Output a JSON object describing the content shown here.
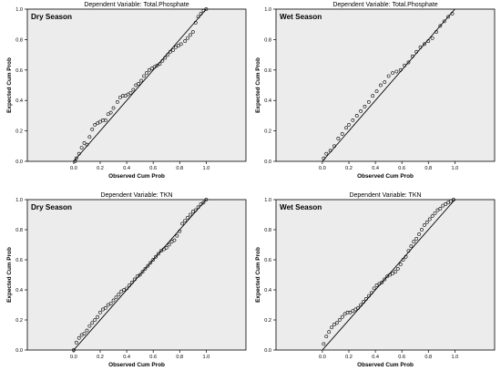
{
  "chart_data": [
    {
      "type": "scatter",
      "title": "Dependent Variable: Total.Phosphate",
      "annotation": "Dry Season",
      "xlabel": "Observed Cum Prob",
      "ylabel": "Expected Cum Prob",
      "xlim": [
        -0.35,
        1.3
      ],
      "ylim": [
        0,
        1.0
      ],
      "xticks": [
        "0.0",
        "0.2",
        "0.4",
        "0.6",
        "0.8",
        "1.0"
      ],
      "yticks": [
        "0.0",
        "0.2",
        "0.4",
        "0.6",
        "0.8",
        "1.0"
      ],
      "colors": {
        "plot_bg": "#ececec",
        "line": "#000000",
        "points": "#000000"
      },
      "reference_line": {
        "x": [
          0,
          1
        ],
        "y": [
          0,
          1
        ]
      },
      "points": [
        [
          0.01,
          0.0
        ],
        [
          0.02,
          0.02
        ],
        [
          0.04,
          0.05
        ],
        [
          0.06,
          0.09
        ],
        [
          0.08,
          0.12
        ],
        [
          0.1,
          0.11
        ],
        [
          0.12,
          0.16
        ],
        [
          0.14,
          0.21
        ],
        [
          0.16,
          0.24
        ],
        [
          0.18,
          0.25
        ],
        [
          0.2,
          0.26
        ],
        [
          0.22,
          0.27
        ],
        [
          0.24,
          0.27
        ],
        [
          0.26,
          0.31
        ],
        [
          0.28,
          0.32
        ],
        [
          0.3,
          0.35
        ],
        [
          0.33,
          0.39
        ],
        [
          0.35,
          0.42
        ],
        [
          0.37,
          0.43
        ],
        [
          0.39,
          0.43
        ],
        [
          0.41,
          0.44
        ],
        [
          0.43,
          0.45
        ],
        [
          0.45,
          0.47
        ],
        [
          0.47,
          0.5
        ],
        [
          0.49,
          0.51
        ],
        [
          0.51,
          0.53
        ],
        [
          0.53,
          0.56
        ],
        [
          0.55,
          0.58
        ],
        [
          0.57,
          0.6
        ],
        [
          0.59,
          0.61
        ],
        [
          0.61,
          0.62
        ],
        [
          0.63,
          0.63
        ],
        [
          0.65,
          0.64
        ],
        [
          0.67,
          0.66
        ],
        [
          0.69,
          0.68
        ],
        [
          0.71,
          0.7
        ],
        [
          0.73,
          0.72
        ],
        [
          0.75,
          0.73
        ],
        [
          0.77,
          0.75
        ],
        [
          0.79,
          0.76
        ],
        [
          0.81,
          0.77
        ],
        [
          0.84,
          0.79
        ],
        [
          0.86,
          0.81
        ],
        [
          0.88,
          0.83
        ],
        [
          0.9,
          0.85
        ],
        [
          0.92,
          0.91
        ],
        [
          0.94,
          0.95
        ],
        [
          0.96,
          0.97
        ],
        [
          0.98,
          0.99
        ],
        [
          1.0,
          1.0
        ]
      ]
    },
    {
      "type": "scatter",
      "title": "Dependent Variable: Total.Phosphate",
      "annotation": "Wet Season",
      "xlabel": "Observed Cum Prob",
      "ylabel": "Expected Cum Prob",
      "xlim": [
        -0.35,
        1.3
      ],
      "ylim": [
        0,
        1.0
      ],
      "xticks": [
        "0.0",
        "0.2",
        "0.4",
        "0.6",
        "0.8",
        "1.0"
      ],
      "yticks": [
        "0.0",
        "0.2",
        "0.4",
        "0.6",
        "0.8",
        "1.0"
      ],
      "colors": {
        "plot_bg": "#ececec",
        "line": "#000000",
        "points": "#000000"
      },
      "reference_line": {
        "x": [
          0,
          1
        ],
        "y": [
          0,
          1
        ]
      },
      "points": [
        [
          0.01,
          0.02
        ],
        [
          0.03,
          0.05
        ],
        [
          0.06,
          0.07
        ],
        [
          0.09,
          0.1
        ],
        [
          0.12,
          0.15
        ],
        [
          0.15,
          0.18
        ],
        [
          0.18,
          0.22
        ],
        [
          0.2,
          0.24
        ],
        [
          0.23,
          0.27
        ],
        [
          0.26,
          0.3
        ],
        [
          0.29,
          0.33
        ],
        [
          0.32,
          0.36
        ],
        [
          0.35,
          0.39
        ],
        [
          0.38,
          0.43
        ],
        [
          0.41,
          0.46
        ],
        [
          0.44,
          0.5
        ],
        [
          0.47,
          0.52
        ],
        [
          0.5,
          0.56
        ],
        [
          0.53,
          0.58
        ],
        [
          0.56,
          0.59
        ],
        [
          0.59,
          0.6
        ],
        [
          0.62,
          0.63
        ],
        [
          0.65,
          0.65
        ],
        [
          0.68,
          0.69
        ],
        [
          0.71,
          0.72
        ],
        [
          0.74,
          0.75
        ],
        [
          0.77,
          0.77
        ],
        [
          0.8,
          0.79
        ],
        [
          0.83,
          0.81
        ],
        [
          0.86,
          0.85
        ],
        [
          0.89,
          0.89
        ],
        [
          0.92,
          0.92
        ],
        [
          0.95,
          0.95
        ],
        [
          0.98,
          0.97
        ]
      ]
    },
    {
      "type": "scatter",
      "title": "Dependent Variable: TKN",
      "annotation": "Dry Season",
      "xlabel": "Observed Cum Prob",
      "ylabel": "Expected Cum Prob",
      "xlim": [
        -0.35,
        1.3
      ],
      "ylim": [
        0,
        1.0
      ],
      "xticks": [
        "0.0",
        "0.2",
        "0.4",
        "0.6",
        "0.8",
        "1.0"
      ],
      "yticks": [
        "0.0",
        "0.2",
        "0.4",
        "0.6",
        "0.8",
        "1.0"
      ],
      "colors": {
        "plot_bg": "#ececec",
        "line": "#000000",
        "points": "#000000"
      },
      "reference_line": {
        "x": [
          0,
          1
        ],
        "y": [
          0,
          1
        ]
      },
      "points": [
        [
          0.0,
          0.0
        ],
        [
          0.02,
          0.05
        ],
        [
          0.04,
          0.08
        ],
        [
          0.06,
          0.1
        ],
        [
          0.08,
          0.11
        ],
        [
          0.1,
          0.13
        ],
        [
          0.12,
          0.16
        ],
        [
          0.14,
          0.18
        ],
        [
          0.16,
          0.2
        ],
        [
          0.18,
          0.22
        ],
        [
          0.2,
          0.25
        ],
        [
          0.22,
          0.27
        ],
        [
          0.24,
          0.28
        ],
        [
          0.26,
          0.3
        ],
        [
          0.28,
          0.31
        ],
        [
          0.3,
          0.33
        ],
        [
          0.32,
          0.35
        ],
        [
          0.34,
          0.37
        ],
        [
          0.36,
          0.39
        ],
        [
          0.38,
          0.4
        ],
        [
          0.4,
          0.41
        ],
        [
          0.42,
          0.43
        ],
        [
          0.44,
          0.45
        ],
        [
          0.46,
          0.47
        ],
        [
          0.48,
          0.49
        ],
        [
          0.5,
          0.5
        ],
        [
          0.52,
          0.52
        ],
        [
          0.54,
          0.54
        ],
        [
          0.56,
          0.56
        ],
        [
          0.58,
          0.58
        ],
        [
          0.6,
          0.6
        ],
        [
          0.62,
          0.62
        ],
        [
          0.64,
          0.64
        ],
        [
          0.66,
          0.66
        ],
        [
          0.68,
          0.67
        ],
        [
          0.7,
          0.68
        ],
        [
          0.72,
          0.7
        ],
        [
          0.74,
          0.72
        ],
        [
          0.76,
          0.73
        ],
        [
          0.78,
          0.76
        ],
        [
          0.8,
          0.79
        ],
        [
          0.82,
          0.84
        ],
        [
          0.84,
          0.86
        ],
        [
          0.86,
          0.88
        ],
        [
          0.88,
          0.9
        ],
        [
          0.9,
          0.92
        ],
        [
          0.92,
          0.93
        ],
        [
          0.94,
          0.95
        ],
        [
          0.96,
          0.97
        ],
        [
          0.98,
          0.98
        ],
        [
          1.0,
          1.0
        ]
      ]
    },
    {
      "type": "scatter",
      "title": "Dependent Variable: TKN",
      "annotation": "Wet Season",
      "xlabel": "Observed Cum Prob",
      "ylabel": "Expected Cum Prob",
      "xlim": [
        -0.35,
        1.3
      ],
      "ylim": [
        0,
        1.0
      ],
      "xticks": [
        "0.0",
        "0.2",
        "0.4",
        "0.6",
        "0.8",
        "1.0"
      ],
      "yticks": [
        "0.0",
        "0.2",
        "0.4",
        "0.6",
        "0.8",
        "1.0"
      ],
      "colors": {
        "plot_bg": "#ececec",
        "line": "#000000",
        "points": "#000000"
      },
      "reference_line": {
        "x": [
          0,
          1
        ],
        "y": [
          0,
          1
        ]
      },
      "points": [
        [
          0.01,
          0.04
        ],
        [
          0.03,
          0.09
        ],
        [
          0.05,
          0.12
        ],
        [
          0.07,
          0.15
        ],
        [
          0.09,
          0.17
        ],
        [
          0.11,
          0.18
        ],
        [
          0.13,
          0.2
        ],
        [
          0.15,
          0.22
        ],
        [
          0.17,
          0.24
        ],
        [
          0.19,
          0.25
        ],
        [
          0.21,
          0.25
        ],
        [
          0.23,
          0.26
        ],
        [
          0.25,
          0.27
        ],
        [
          0.27,
          0.28
        ],
        [
          0.29,
          0.3
        ],
        [
          0.31,
          0.32
        ],
        [
          0.33,
          0.34
        ],
        [
          0.35,
          0.36
        ],
        [
          0.37,
          0.38
        ],
        [
          0.39,
          0.41
        ],
        [
          0.41,
          0.43
        ],
        [
          0.43,
          0.44
        ],
        [
          0.45,
          0.45
        ],
        [
          0.47,
          0.47
        ],
        [
          0.49,
          0.49
        ],
        [
          0.51,
          0.5
        ],
        [
          0.53,
          0.51
        ],
        [
          0.55,
          0.52
        ],
        [
          0.57,
          0.54
        ],
        [
          0.59,
          0.57
        ],
        [
          0.61,
          0.6
        ],
        [
          0.63,
          0.62
        ],
        [
          0.65,
          0.66
        ],
        [
          0.67,
          0.69
        ],
        [
          0.69,
          0.72
        ],
        [
          0.71,
          0.74
        ],
        [
          0.73,
          0.77
        ],
        [
          0.75,
          0.8
        ],
        [
          0.77,
          0.83
        ],
        [
          0.79,
          0.85
        ],
        [
          0.81,
          0.87
        ],
        [
          0.83,
          0.89
        ],
        [
          0.85,
          0.91
        ],
        [
          0.87,
          0.93
        ],
        [
          0.89,
          0.94
        ],
        [
          0.91,
          0.96
        ],
        [
          0.93,
          0.97
        ],
        [
          0.95,
          0.98
        ],
        [
          0.97,
          0.99
        ],
        [
          0.99,
          1.0
        ]
      ]
    }
  ]
}
